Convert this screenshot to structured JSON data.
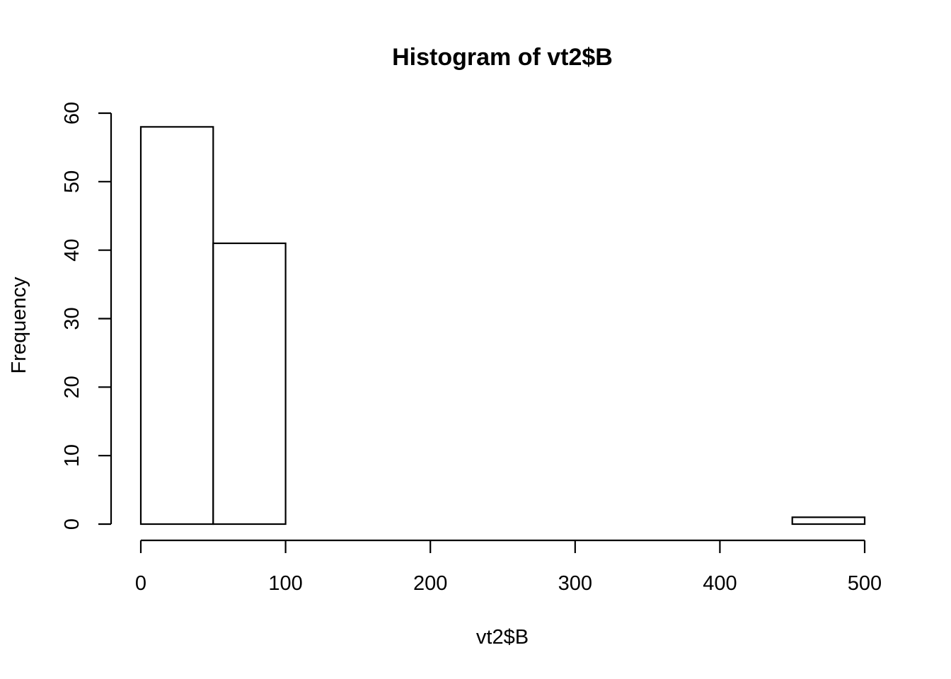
{
  "chart_data": {
    "type": "bar",
    "title": "Histogram of vt2$B",
    "xlabel": "vt2$B",
    "ylabel": "Frequency",
    "bins": [
      {
        "start": 0,
        "end": 50,
        "count": 58
      },
      {
        "start": 50,
        "end": 100,
        "count": 41
      },
      {
        "start": 100,
        "end": 150,
        "count": 0
      },
      {
        "start": 150,
        "end": 200,
        "count": 0
      },
      {
        "start": 200,
        "end": 250,
        "count": 0
      },
      {
        "start": 250,
        "end": 300,
        "count": 0
      },
      {
        "start": 300,
        "end": 350,
        "count": 0
      },
      {
        "start": 350,
        "end": 400,
        "count": 0
      },
      {
        "start": 400,
        "end": 450,
        "count": 0
      },
      {
        "start": 450,
        "end": 500,
        "count": 1
      }
    ],
    "xlim": [
      0,
      500
    ],
    "ylim": [
      0,
      60
    ],
    "x_ticks": [
      "0",
      "100",
      "200",
      "300",
      "400",
      "500"
    ],
    "y_ticks": [
      "0",
      "10",
      "20",
      "30",
      "40",
      "50",
      "60"
    ],
    "grid": false,
    "bar_fill": "#ffffff",
    "bar_stroke": "#000000"
  }
}
